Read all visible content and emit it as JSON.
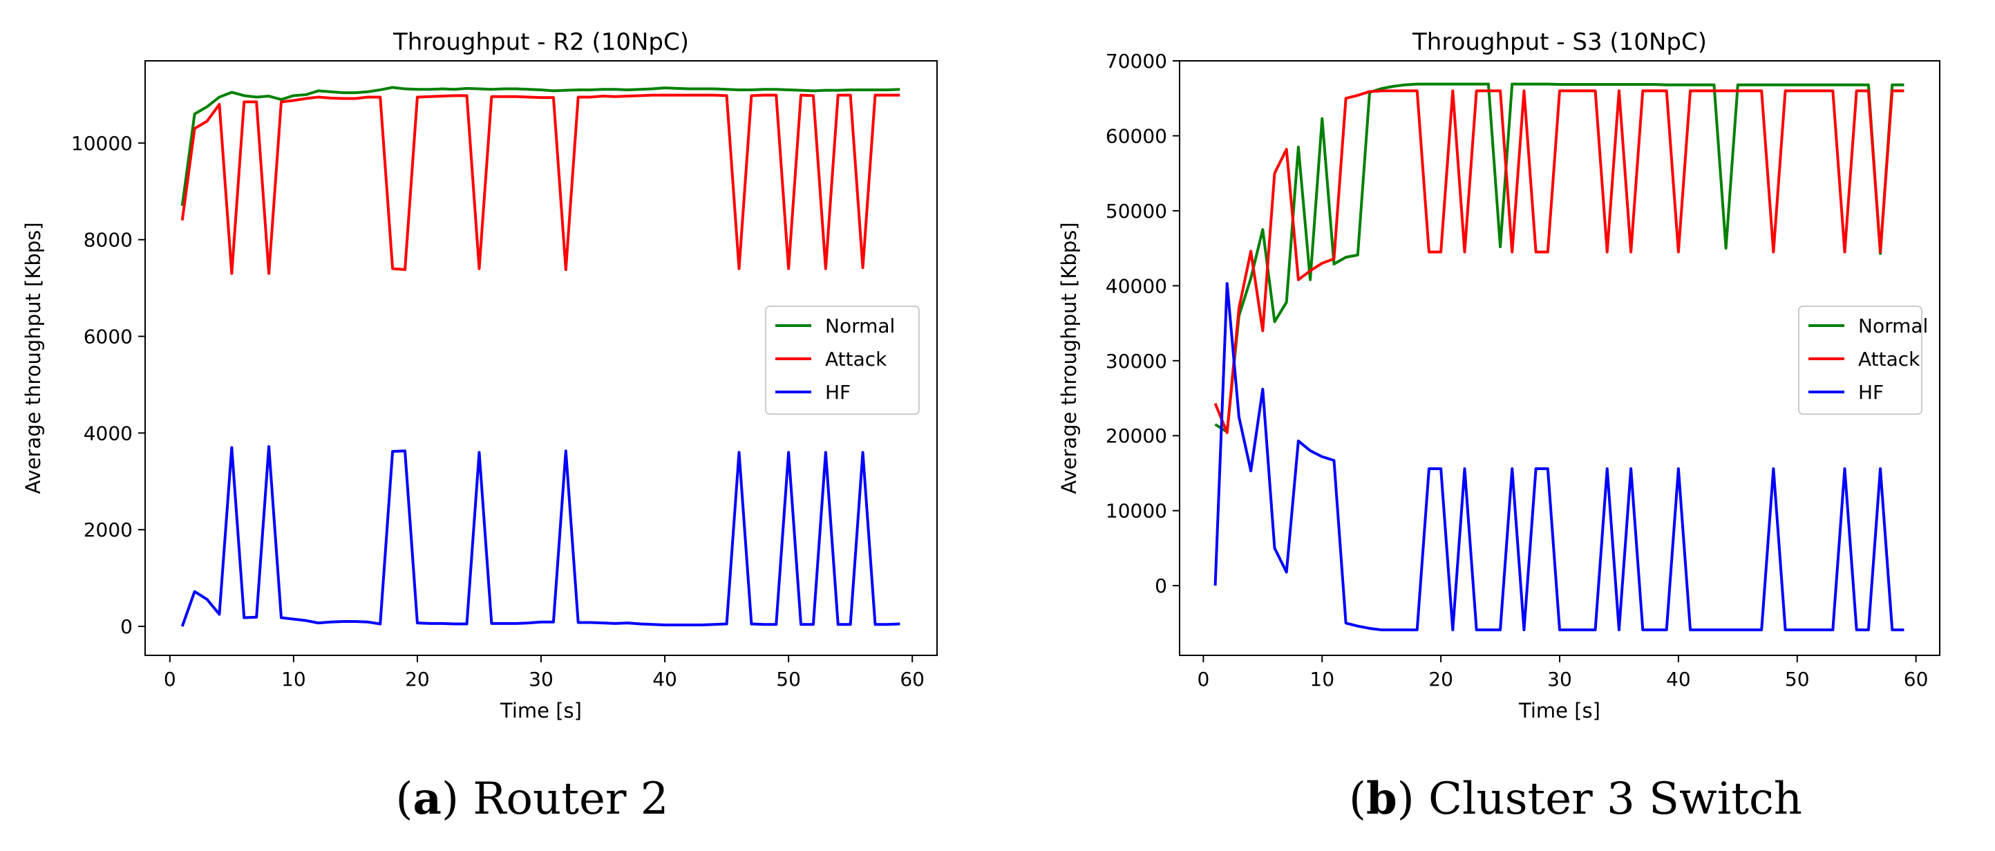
{
  "colors": {
    "normal": "#008000",
    "attack": "#ff0000",
    "hf": "#0000ff"
  },
  "captions": {
    "a": {
      "letter": "a",
      "text": " Router 2"
    },
    "b": {
      "letter": "b",
      "text": " Cluster 3 Switch"
    }
  },
  "chart_data": [
    {
      "type": "line",
      "title": "Throughput - R2 (10NpC)",
      "xlabel": "Time [s]",
      "ylabel": "Average throughput [Kbps]",
      "xlim": [
        -2,
        62
      ],
      "ylim": [
        -600,
        11700
      ],
      "xticks": [
        0,
        10,
        20,
        30,
        40,
        50,
        60
      ],
      "yticks": [
        0,
        2000,
        4000,
        6000,
        8000,
        10000
      ],
      "legend_position": "center-right",
      "x": [
        1,
        2,
        3,
        4,
        5,
        6,
        7,
        8,
        9,
        10,
        11,
        12,
        13,
        14,
        15,
        16,
        17,
        18,
        19,
        20,
        21,
        22,
        23,
        24,
        25,
        26,
        27,
        28,
        29,
        30,
        31,
        32,
        33,
        34,
        35,
        36,
        37,
        38,
        39,
        40,
        41,
        42,
        43,
        44,
        45,
        46,
        47,
        48,
        49,
        50,
        51,
        52,
        53,
        54,
        55,
        56,
        57,
        58,
        59
      ],
      "series": [
        {
          "name": "Normal",
          "color_key": "normal",
          "values": [
            8700,
            10600,
            10750,
            10950,
            11050,
            10980,
            10950,
            10970,
            10900,
            10980,
            11000,
            11080,
            11060,
            11040,
            11040,
            11060,
            11100,
            11150,
            11120,
            11110,
            11110,
            11120,
            11110,
            11130,
            11120,
            11110,
            11120,
            11120,
            11110,
            11100,
            11080,
            11090,
            11100,
            11100,
            11110,
            11110,
            11100,
            11110,
            11120,
            11140,
            11130,
            11120,
            11120,
            11120,
            11110,
            11100,
            11100,
            11110,
            11110,
            11100,
            11090,
            11080,
            11090,
            11090,
            11100,
            11100,
            11100,
            11100,
            11110
          ]
        },
        {
          "name": "Attack",
          "color_key": "attack",
          "values": [
            8400,
            10300,
            10450,
            10800,
            7300,
            10850,
            10850,
            7300,
            10850,
            10880,
            10920,
            10950,
            10930,
            10920,
            10920,
            10950,
            10950,
            7400,
            7380,
            10950,
            10960,
            10970,
            10980,
            10980,
            7400,
            10960,
            10960,
            10960,
            10950,
            10940,
            10940,
            7380,
            10950,
            10950,
            10970,
            10960,
            10970,
            10980,
            10990,
            10990,
            10990,
            10990,
            10990,
            10990,
            10980,
            7400,
            10980,
            10990,
            10990,
            7400,
            10990,
            10980,
            7400,
            10990,
            10990,
            7420,
            10990,
            10990,
            10990
          ]
        },
        {
          "name": "HF",
          "color_key": "hf",
          "values": [
            0,
            720,
            560,
            250,
            3700,
            180,
            190,
            3720,
            180,
            150,
            120,
            70,
            90,
            100,
            100,
            90,
            50,
            3620,
            3630,
            70,
            60,
            60,
            50,
            50,
            3600,
            60,
            60,
            60,
            70,
            90,
            90,
            3630,
            80,
            80,
            70,
            60,
            70,
            50,
            40,
            30,
            30,
            30,
            30,
            40,
            50,
            3600,
            50,
            40,
            40,
            3600,
            40,
            40,
            3600,
            40,
            40,
            3600,
            40,
            40,
            50
          ]
        }
      ]
    },
    {
      "type": "line",
      "title": "Throughput - S3 (10NpC)",
      "xlabel": "Time [s]",
      "ylabel": "Average throughput [Kbps]",
      "xlim": [
        -2,
        62
      ],
      "ylim": [
        -9300,
        70000
      ],
      "xticks": [
        0,
        10,
        20,
        30,
        40,
        50,
        60
      ],
      "yticks": [
        0,
        10000,
        20000,
        30000,
        40000,
        50000,
        60000,
        70000
      ],
      "legend_position": "center-right",
      "x": [
        1,
        2,
        3,
        4,
        5,
        6,
        7,
        8,
        9,
        10,
        11,
        12,
        13,
        14,
        15,
        16,
        17,
        18,
        19,
        20,
        21,
        22,
        23,
        24,
        25,
        26,
        27,
        28,
        29,
        30,
        31,
        32,
        33,
        34,
        35,
        36,
        37,
        38,
        39,
        40,
        41,
        42,
        43,
        44,
        45,
        46,
        47,
        48,
        49,
        50,
        51,
        52,
        53,
        54,
        55,
        56,
        57,
        58,
        59
      ],
      "series": [
        {
          "name": "Normal",
          "color_key": "normal",
          "values": [
            21500,
            20500,
            36000,
            41000,
            47500,
            35200,
            37800,
            58500,
            40800,
            62300,
            42900,
            43800,
            44100,
            65800,
            66300,
            66600,
            66800,
            66900,
            66900,
            66900,
            66900,
            66900,
            66900,
            66900,
            45200,
            66900,
            66900,
            66900,
            66900,
            66850,
            66850,
            66850,
            66850,
            66850,
            66850,
            66850,
            66850,
            66850,
            66800,
            66800,
            66800,
            66800,
            66800,
            45000,
            66800,
            66800,
            66800,
            66800,
            66800,
            66800,
            66800,
            66800,
            66800,
            66800,
            66800,
            66800,
            44300,
            66800,
            66800
          ]
        },
        {
          "name": "Attack",
          "color_key": "attack",
          "values": [
            24300,
            20400,
            37000,
            44600,
            34000,
            55000,
            58200,
            40800,
            42000,
            43000,
            43600,
            65000,
            65400,
            65900,
            66000,
            66000,
            66000,
            66000,
            44500,
            44500,
            66000,
            44500,
            66000,
            66000,
            66000,
            44500,
            66000,
            44500,
            44500,
            66000,
            66000,
            66000,
            66000,
            44500,
            66000,
            44500,
            66000,
            66000,
            66000,
            44500,
            66000,
            66000,
            66000,
            66000,
            66000,
            66000,
            66000,
            44500,
            66000,
            66000,
            66000,
            66000,
            66000,
            44500,
            66000,
            66000,
            44500,
            66000,
            66000
          ]
        },
        {
          "name": "HF",
          "color_key": "hf",
          "values": [
            0,
            40300,
            22500,
            15300,
            26200,
            5000,
            1800,
            19300,
            18000,
            17200,
            16700,
            -5000,
            -5400,
            -5700,
            -5900,
            -5900,
            -5900,
            -5900,
            15600,
            15600,
            -5900,
            15600,
            -5900,
            -5900,
            -5900,
            15600,
            -5900,
            15600,
            15600,
            -5900,
            -5900,
            -5900,
            -5900,
            15600,
            -5900,
            15600,
            -5900,
            -5900,
            -5900,
            15600,
            -5900,
            -5900,
            -5900,
            -5900,
            -5900,
            -5900,
            -5900,
            15600,
            -5900,
            -5900,
            -5900,
            -5900,
            -5900,
            15600,
            -5900,
            -5900,
            15600,
            -5900,
            -5900
          ]
        }
      ]
    }
  ]
}
